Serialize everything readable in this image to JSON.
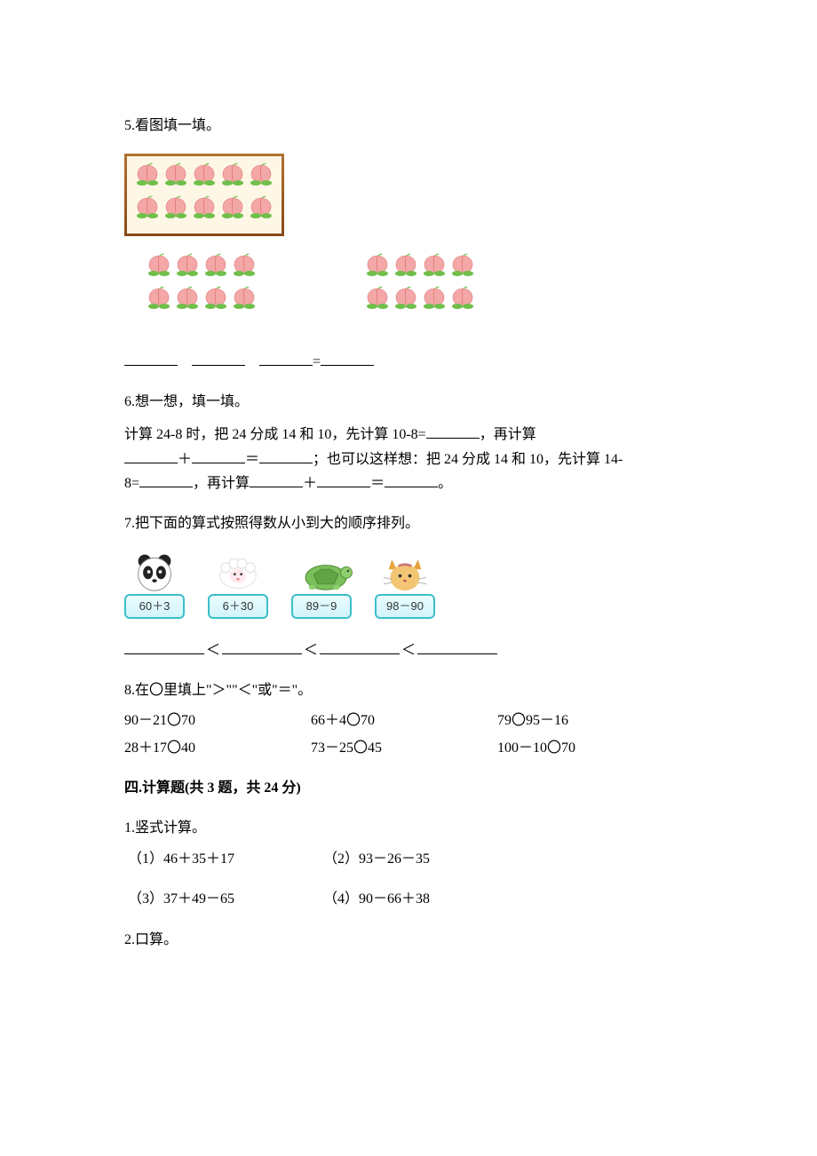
{
  "q5": {
    "title": "5.看图填一填。",
    "peach_color": "#f4a7a7",
    "peach_leaf": "#6fbf4a",
    "framed_rows": 2,
    "framed_cols": 5,
    "group_left_rows": 2,
    "group_left_cols": 4,
    "group_right_rows": 2,
    "group_right_cols": 4,
    "eq_sep": "=",
    "frame_border_color": "#8a4a18",
    "frame_bg": "#fef7e6"
  },
  "q6": {
    "title": "6.想一想，填一填。",
    "line1_a": "计算 24-8 时，把 24 分成 14 和 10，先计算 10-8=",
    "line1_b": "，再计算",
    "line2_a": "＋",
    "line2_b": "＝",
    "line2_c": "；也可以这样想：把 24 分成 14 和 10，先计算 14-",
    "line3_a": "8=",
    "line3_b": "，再计算",
    "line3_c": "＋",
    "line3_d": "＝",
    "line3_e": "。"
  },
  "q7": {
    "title": "7.把下面的算式按照得数从小到大的顺序排列。",
    "cards": [
      {
        "name": "panda",
        "expr": "60＋3"
      },
      {
        "name": "sheep",
        "expr": "6＋30"
      },
      {
        "name": "turtle",
        "expr": "89－9"
      },
      {
        "name": "cat",
        "expr": "98－90"
      }
    ],
    "lt": "＜",
    "tag_border": "#3bbfc9",
    "tag_bg_top": "#e9fbff",
    "tag_bg_bottom": "#d2f5fa"
  },
  "q8": {
    "title": "8.在〇里填上\"＞\"\"＜\"或\"＝\"。",
    "rows": [
      [
        "90－21〇70",
        "66＋4〇70",
        "79〇95－16"
      ],
      [
        "28＋17〇40",
        "73－25〇45",
        "100－10〇70"
      ]
    ]
  },
  "section4": {
    "header": "四.计算题(共 3 题，共 24 分)",
    "q1": {
      "title": "1.竖式计算。",
      "items": [
        "（1）46＋35＋17",
        "（2）93－26－35",
        "（3）37＋49－65",
        "（4）90－66＋38"
      ]
    },
    "q2": {
      "title": "2.口算。"
    }
  },
  "colors": {
    "text": "#000000",
    "bg": "#ffffff"
  }
}
